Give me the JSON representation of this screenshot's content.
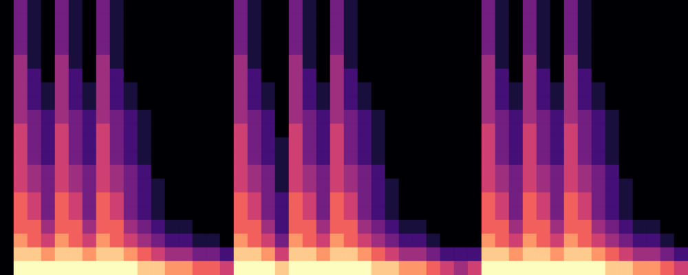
{
  "chart_data": {
    "type": "heatmap",
    "x": [
      0,
      1,
      2,
      3,
      4,
      5,
      6,
      7,
      8,
      9,
      10,
      11,
      12,
      13,
      14,
      15,
      16,
      17,
      18,
      19,
      20,
      21,
      22,
      23,
      24,
      25,
      26,
      27,
      28,
      29,
      30,
      31,
      32,
      33,
      34,
      35,
      36,
      37,
      38,
      39,
      40,
      41,
      42,
      43,
      44,
      45,
      46,
      47,
      48,
      49
    ],
    "y": [
      19,
      18,
      17,
      16,
      15,
      14,
      13,
      12,
      11,
      10,
      9,
      8,
      7,
      6,
      5,
      4,
      3,
      2,
      1,
      0
    ],
    "cells": [
      [
        0,
        3,
        1,
        0,
        3,
        1,
        0,
        3,
        1,
        0,
        0,
        0,
        0,
        0,
        0,
        0,
        0,
        3,
        1,
        0,
        0,
        3,
        1,
        0,
        3,
        1,
        0,
        0,
        0,
        0,
        0,
        0,
        0,
        0,
        0,
        3,
        1,
        0,
        3,
        1,
        0,
        3,
        1,
        0,
        0,
        0,
        0,
        0,
        0,
        0
      ],
      [
        0,
        3,
        1,
        0,
        3,
        1,
        0,
        3,
        1,
        0,
        0,
        0,
        0,
        0,
        0,
        0,
        0,
        3,
        1,
        0,
        0,
        3,
        1,
        0,
        3,
        1,
        0,
        0,
        0,
        0,
        0,
        0,
        0,
        0,
        0,
        3,
        1,
        0,
        3,
        1,
        0,
        3,
        1,
        0,
        0,
        0,
        0,
        0,
        0,
        0
      ],
      [
        0,
        3,
        1,
        0,
        3,
        1,
        0,
        3,
        1,
        0,
        0,
        0,
        0,
        0,
        0,
        0,
        0,
        3,
        1,
        0,
        0,
        3,
        1,
        0,
        3,
        1,
        0,
        0,
        0,
        0,
        0,
        0,
        0,
        0,
        0,
        3,
        1,
        0,
        3,
        1,
        0,
        3,
        1,
        0,
        0,
        0,
        0,
        0,
        0,
        0
      ],
      [
        0,
        3,
        1,
        0,
        3,
        1,
        0,
        3,
        1,
        0,
        0,
        0,
        0,
        0,
        0,
        0,
        0,
        3,
        1,
        0,
        0,
        3,
        1,
        0,
        3,
        1,
        0,
        0,
        0,
        0,
        0,
        0,
        0,
        0,
        0,
        3,
        1,
        0,
        3,
        1,
        0,
        3,
        1,
        0,
        0,
        0,
        0,
        0,
        0,
        0
      ],
      [
        0,
        4,
        1,
        0,
        4,
        1,
        0,
        4,
        1,
        0,
        0,
        0,
        0,
        0,
        0,
        0,
        0,
        4,
        1,
        0,
        0,
        4,
        1,
        0,
        4,
        1,
        0,
        0,
        0,
        0,
        0,
        0,
        0,
        0,
        0,
        4,
        1,
        0,
        4,
        1,
        0,
        4,
        1,
        0,
        0,
        0,
        0,
        0,
        0,
        0
      ],
      [
        0,
        4,
        2,
        0,
        4,
        2,
        0,
        4,
        2,
        0,
        0,
        0,
        0,
        0,
        0,
        0,
        0,
        4,
        2,
        0,
        0,
        4,
        2,
        0,
        4,
        2,
        0,
        0,
        0,
        0,
        0,
        0,
        0,
        0,
        0,
        4,
        2,
        0,
        4,
        2,
        0,
        4,
        2,
        0,
        0,
        0,
        0,
        0,
        0,
        0
      ],
      [
        0,
        4,
        2,
        1,
        4,
        2,
        1,
        4,
        2,
        1,
        0,
        0,
        0,
        0,
        0,
        0,
        0,
        4,
        2,
        1,
        0,
        4,
        2,
        1,
        4,
        2,
        1,
        0,
        0,
        0,
        0,
        0,
        0,
        0,
        0,
        4,
        2,
        1,
        4,
        2,
        1,
        4,
        2,
        1,
        0,
        0,
        0,
        0,
        0,
        0
      ],
      [
        0,
        4,
        2,
        1,
        4,
        2,
        1,
        4,
        2,
        1,
        0,
        0,
        0,
        0,
        0,
        0,
        0,
        4,
        2,
        1,
        0,
        4,
        2,
        1,
        4,
        2,
        1,
        0,
        0,
        0,
        0,
        0,
        0,
        0,
        0,
        4,
        2,
        1,
        4,
        2,
        1,
        4,
        2,
        1,
        0,
        0,
        0,
        0,
        0,
        0
      ],
      [
        0,
        4,
        3,
        2,
        4,
        3,
        2,
        4,
        3,
        2,
        1,
        0,
        0,
        0,
        0,
        0,
        0,
        4,
        3,
        2,
        0,
        4,
        3,
        2,
        4,
        3,
        2,
        1,
        0,
        0,
        0,
        0,
        0,
        0,
        0,
        4,
        3,
        2,
        4,
        3,
        2,
        4,
        3,
        2,
        1,
        0,
        0,
        0,
        0,
        0
      ],
      [
        0,
        5,
        3,
        2,
        5,
        3,
        2,
        5,
        3,
        2,
        1,
        0,
        0,
        0,
        0,
        0,
        0,
        5,
        3,
        2,
        0,
        5,
        3,
        2,
        5,
        3,
        2,
        1,
        0,
        0,
        0,
        0,
        0,
        0,
        0,
        5,
        3,
        2,
        5,
        3,
        2,
        5,
        3,
        2,
        1,
        0,
        0,
        0,
        0,
        0
      ],
      [
        0,
        5,
        3,
        2,
        5,
        3,
        2,
        5,
        3,
        2,
        1,
        0,
        0,
        0,
        0,
        0,
        0,
        5,
        3,
        2,
        1,
        5,
        3,
        2,
        5,
        3,
        2,
        1,
        0,
        0,
        0,
        0,
        0,
        0,
        0,
        5,
        3,
        2,
        5,
        3,
        2,
        5,
        3,
        2,
        1,
        0,
        0,
        0,
        0,
        0
      ],
      [
        0,
        5,
        3,
        2,
        5,
        3,
        2,
        5,
        3,
        2,
        1,
        0,
        0,
        0,
        0,
        0,
        0,
        5,
        3,
        2,
        1,
        5,
        3,
        2,
        5,
        3,
        2,
        1,
        0,
        0,
        0,
        0,
        0,
        0,
        0,
        5,
        3,
        2,
        5,
        3,
        2,
        5,
        3,
        2,
        1,
        0,
        0,
        0,
        0,
        0
      ],
      [
        0,
        5,
        4,
        3,
        5,
        4,
        3,
        5,
        4,
        3,
        2,
        0,
        0,
        0,
        0,
        0,
        0,
        5,
        4,
        3,
        1,
        5,
        4,
        3,
        5,
        4,
        3,
        2,
        0,
        0,
        0,
        0,
        0,
        0,
        0,
        5,
        4,
        3,
        5,
        4,
        3,
        5,
        4,
        3,
        2,
        0,
        0,
        0,
        0,
        0
      ],
      [
        0,
        5,
        4,
        3,
        5,
        4,
        3,
        5,
        4,
        3,
        2,
        1,
        0,
        0,
        0,
        0,
        0,
        5,
        4,
        3,
        1,
        5,
        4,
        3,
        5,
        4,
        3,
        2,
        1,
        0,
        0,
        0,
        0,
        0,
        0,
        5,
        4,
        3,
        5,
        4,
        3,
        5,
        4,
        3,
        2,
        1,
        0,
        0,
        0,
        0
      ],
      [
        0,
        6,
        5,
        3,
        6,
        5,
        3,
        6,
        5,
        3,
        2,
        1,
        0,
        0,
        0,
        0,
        0,
        6,
        5,
        3,
        2,
        6,
        5,
        3,
        6,
        5,
        3,
        2,
        1,
        0,
        0,
        0,
        0,
        0,
        0,
        6,
        5,
        3,
        6,
        5,
        3,
        6,
        5,
        3,
        2,
        1,
        0,
        0,
        0,
        0
      ],
      [
        0,
        6,
        5,
        3,
        6,
        5,
        3,
        6,
        5,
        3,
        2,
        1,
        0,
        0,
        0,
        0,
        0,
        6,
        5,
        3,
        2,
        6,
        5,
        3,
        6,
        5,
        3,
        2,
        1,
        0,
        0,
        0,
        0,
        0,
        0,
        6,
        5,
        3,
        6,
        5,
        3,
        6,
        5,
        3,
        2,
        1,
        0,
        0,
        0,
        0
      ],
      [
        0,
        6,
        6,
        4,
        6,
        6,
        4,
        6,
        6,
        4,
        3,
        2,
        1,
        1,
        0,
        0,
        0,
        6,
        6,
        4,
        2,
        6,
        6,
        4,
        6,
        6,
        4,
        3,
        2,
        1,
        1,
        0,
        0,
        0,
        0,
        6,
        6,
        4,
        6,
        6,
        4,
        6,
        6,
        4,
        3,
        2,
        1,
        1,
        0,
        0
      ],
      [
        0,
        7,
        6,
        5,
        7,
        6,
        5,
        7,
        6,
        5,
        4,
        3,
        2,
        2,
        1,
        1,
        0,
        7,
        6,
        5,
        3,
        7,
        6,
        5,
        7,
        6,
        5,
        4,
        3,
        2,
        2,
        1,
        0,
        0,
        0,
        7,
        6,
        5,
        7,
        6,
        5,
        7,
        6,
        5,
        4,
        3,
        2,
        2,
        1,
        0
      ],
      [
        0,
        8,
        8,
        7,
        8,
        8,
        7,
        8,
        8,
        7,
        6,
        5,
        4,
        4,
        3,
        3,
        2,
        8,
        8,
        7,
        5,
        8,
        8,
        7,
        8,
        8,
        7,
        6,
        5,
        4,
        4,
        3,
        2,
        2,
        2,
        8,
        8,
        7,
        8,
        8,
        7,
        8,
        8,
        7,
        6,
        5,
        4,
        4,
        3,
        2
      ],
      [
        0,
        9,
        9,
        9,
        9,
        9,
        9,
        9,
        9,
        9,
        8,
        8,
        7,
        7,
        6,
        6,
        5,
        9,
        9,
        9,
        8,
        9,
        9,
        9,
        9,
        9,
        9,
        8,
        8,
        7,
        7,
        6,
        5,
        4,
        5,
        9,
        9,
        9,
        9,
        9,
        9,
        9,
        9,
        9,
        8,
        8,
        7,
        7,
        6,
        5
      ]
    ],
    "xlim": [
      0,
      50
    ],
    "ylim": [
      0,
      20
    ],
    "zlim": [
      0,
      9
    ],
    "color": "magma",
    "tick_labels": false
  }
}
